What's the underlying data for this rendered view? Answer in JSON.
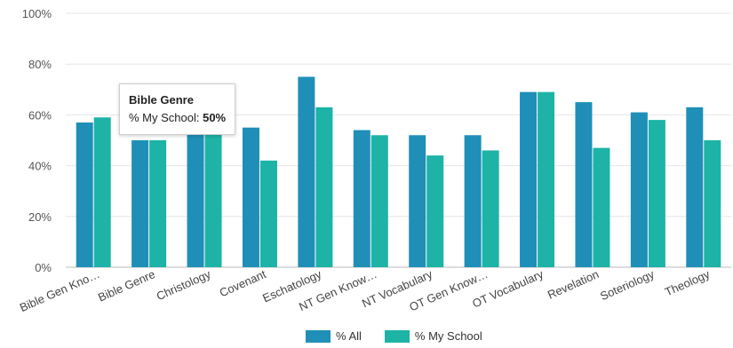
{
  "chart_data": {
    "type": "bar",
    "categories": [
      "Bible Gen Kno…",
      "Bible Genre",
      "Christology",
      "Covenant",
      "Eschatology",
      "NT Gen Know…",
      "NT Vocabulary",
      "OT Gen Know…",
      "OT Vocabulary",
      "Revelation",
      "Soteriology",
      "Theology"
    ],
    "series": [
      {
        "name": "% All",
        "color": "#1f8fb8",
        "values": [
          57,
          50,
          55,
          55,
          75,
          54,
          52,
          52,
          69,
          65,
          61,
          63
        ]
      },
      {
        "name": "% My School",
        "color": "#1db3a6",
        "values": [
          59,
          50,
          55,
          42,
          63,
          52,
          44,
          46,
          69,
          47,
          58,
          50
        ]
      }
    ],
    "ylim": [
      0,
      100
    ],
    "yticks": [
      "0%",
      "20%",
      "40%",
      "60%",
      "80%",
      "100%"
    ],
    "grid": true,
    "legend": "bottom"
  },
  "tooltip": {
    "title": "Bible Genre",
    "label": "% My School: ",
    "value": "50%"
  }
}
